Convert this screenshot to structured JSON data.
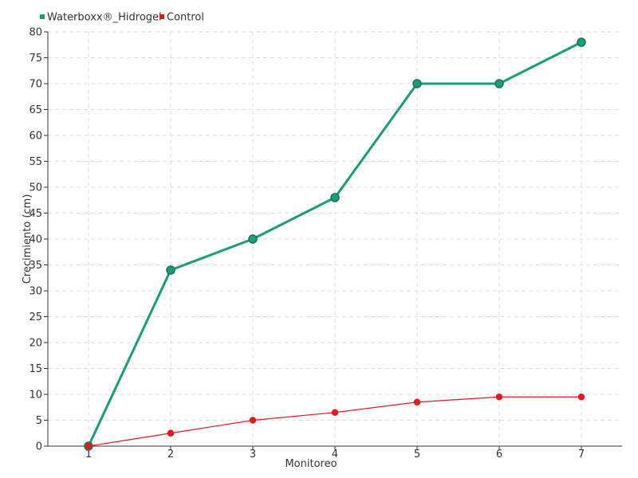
{
  "chart_data": {
    "type": "line",
    "title": "",
    "xlabel": "Monitoreo",
    "ylabel": "Crecimiento (cm)",
    "categories": [
      "1",
      "2",
      "3",
      "4",
      "5",
      "6",
      "7"
    ],
    "ylim": [
      0,
      80
    ],
    "y_ticks": [
      0,
      5,
      10,
      15,
      20,
      25,
      30,
      35,
      40,
      45,
      50,
      55,
      60,
      65,
      70,
      75,
      80
    ],
    "grid": true,
    "legend_position": "top-left",
    "series": [
      {
        "name": "Waterboxx®_Hidrogel",
        "color": "#1a9e77",
        "values": [
          0,
          34,
          40,
          48,
          70,
          70,
          78
        ]
      },
      {
        "name": "Control",
        "color": "#e31a1c",
        "values": [
          0,
          2.5,
          5,
          6.5,
          8.5,
          9.5,
          9.5
        ]
      }
    ]
  }
}
